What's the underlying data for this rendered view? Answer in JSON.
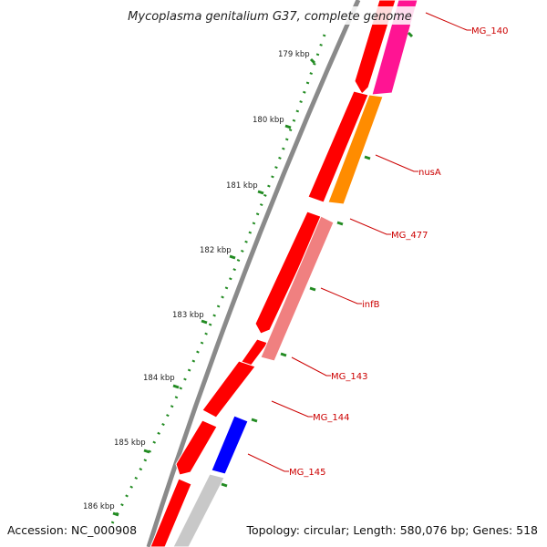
{
  "title": "Mycoplasma genitalium G37, complete genome",
  "footer": {
    "accession": "Accession: NC_000908",
    "summary": "Topology: circular; Length: 580,076 bp; Genes: 518"
  },
  "ticks": [
    "179 kbp",
    "180 kbp",
    "181 kbp",
    "182 kbp",
    "183 kbp",
    "184 kbp",
    "185 kbp",
    "186 kbp"
  ],
  "gene_labels": [
    "MG_140",
    "nusA",
    "MG_477",
    "infB",
    "MG_143",
    "MG_144",
    "MG_145"
  ],
  "colors": {
    "backbone": "#888888",
    "forward_cds": "#ff0000",
    "label": "#cc0000",
    "tick": "#228b22",
    "MG_140": "#ff1493",
    "nusA": "#ff8c00",
    "infB": "#f08080",
    "MG_145": "#0000ff",
    "reverse_other": "#c8c8c8"
  }
}
